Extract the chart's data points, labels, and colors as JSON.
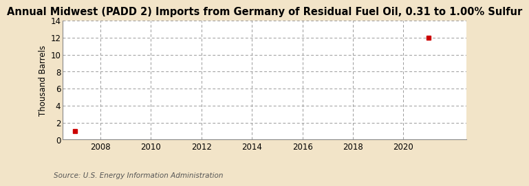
{
  "title": "Annual Midwest (PADD 2) Imports from Germany of Residual Fuel Oil, 0.31 to 1.00% Sulfur",
  "ylabel": "Thousand Barrels",
  "source": "Source: U.S. Energy Information Administration",
  "background_color": "#f2e4c8",
  "plot_bg_color": "#ffffff",
  "data_points": [
    {
      "year": 2007,
      "value": 1
    },
    {
      "year": 2021,
      "value": 12
    }
  ],
  "marker_color": "#cc0000",
  "marker": "s",
  "marker_size": 4,
  "xlim": [
    2006.5,
    2022.5
  ],
  "ylim": [
    0,
    14
  ],
  "yticks": [
    0,
    2,
    4,
    6,
    8,
    10,
    12,
    14
  ],
  "xticks": [
    2008,
    2010,
    2012,
    2014,
    2016,
    2018,
    2020
  ],
  "grid_color": "#999999",
  "title_fontsize": 10.5,
  "axis_label_fontsize": 8.5,
  "tick_fontsize": 8.5,
  "source_fontsize": 7.5
}
